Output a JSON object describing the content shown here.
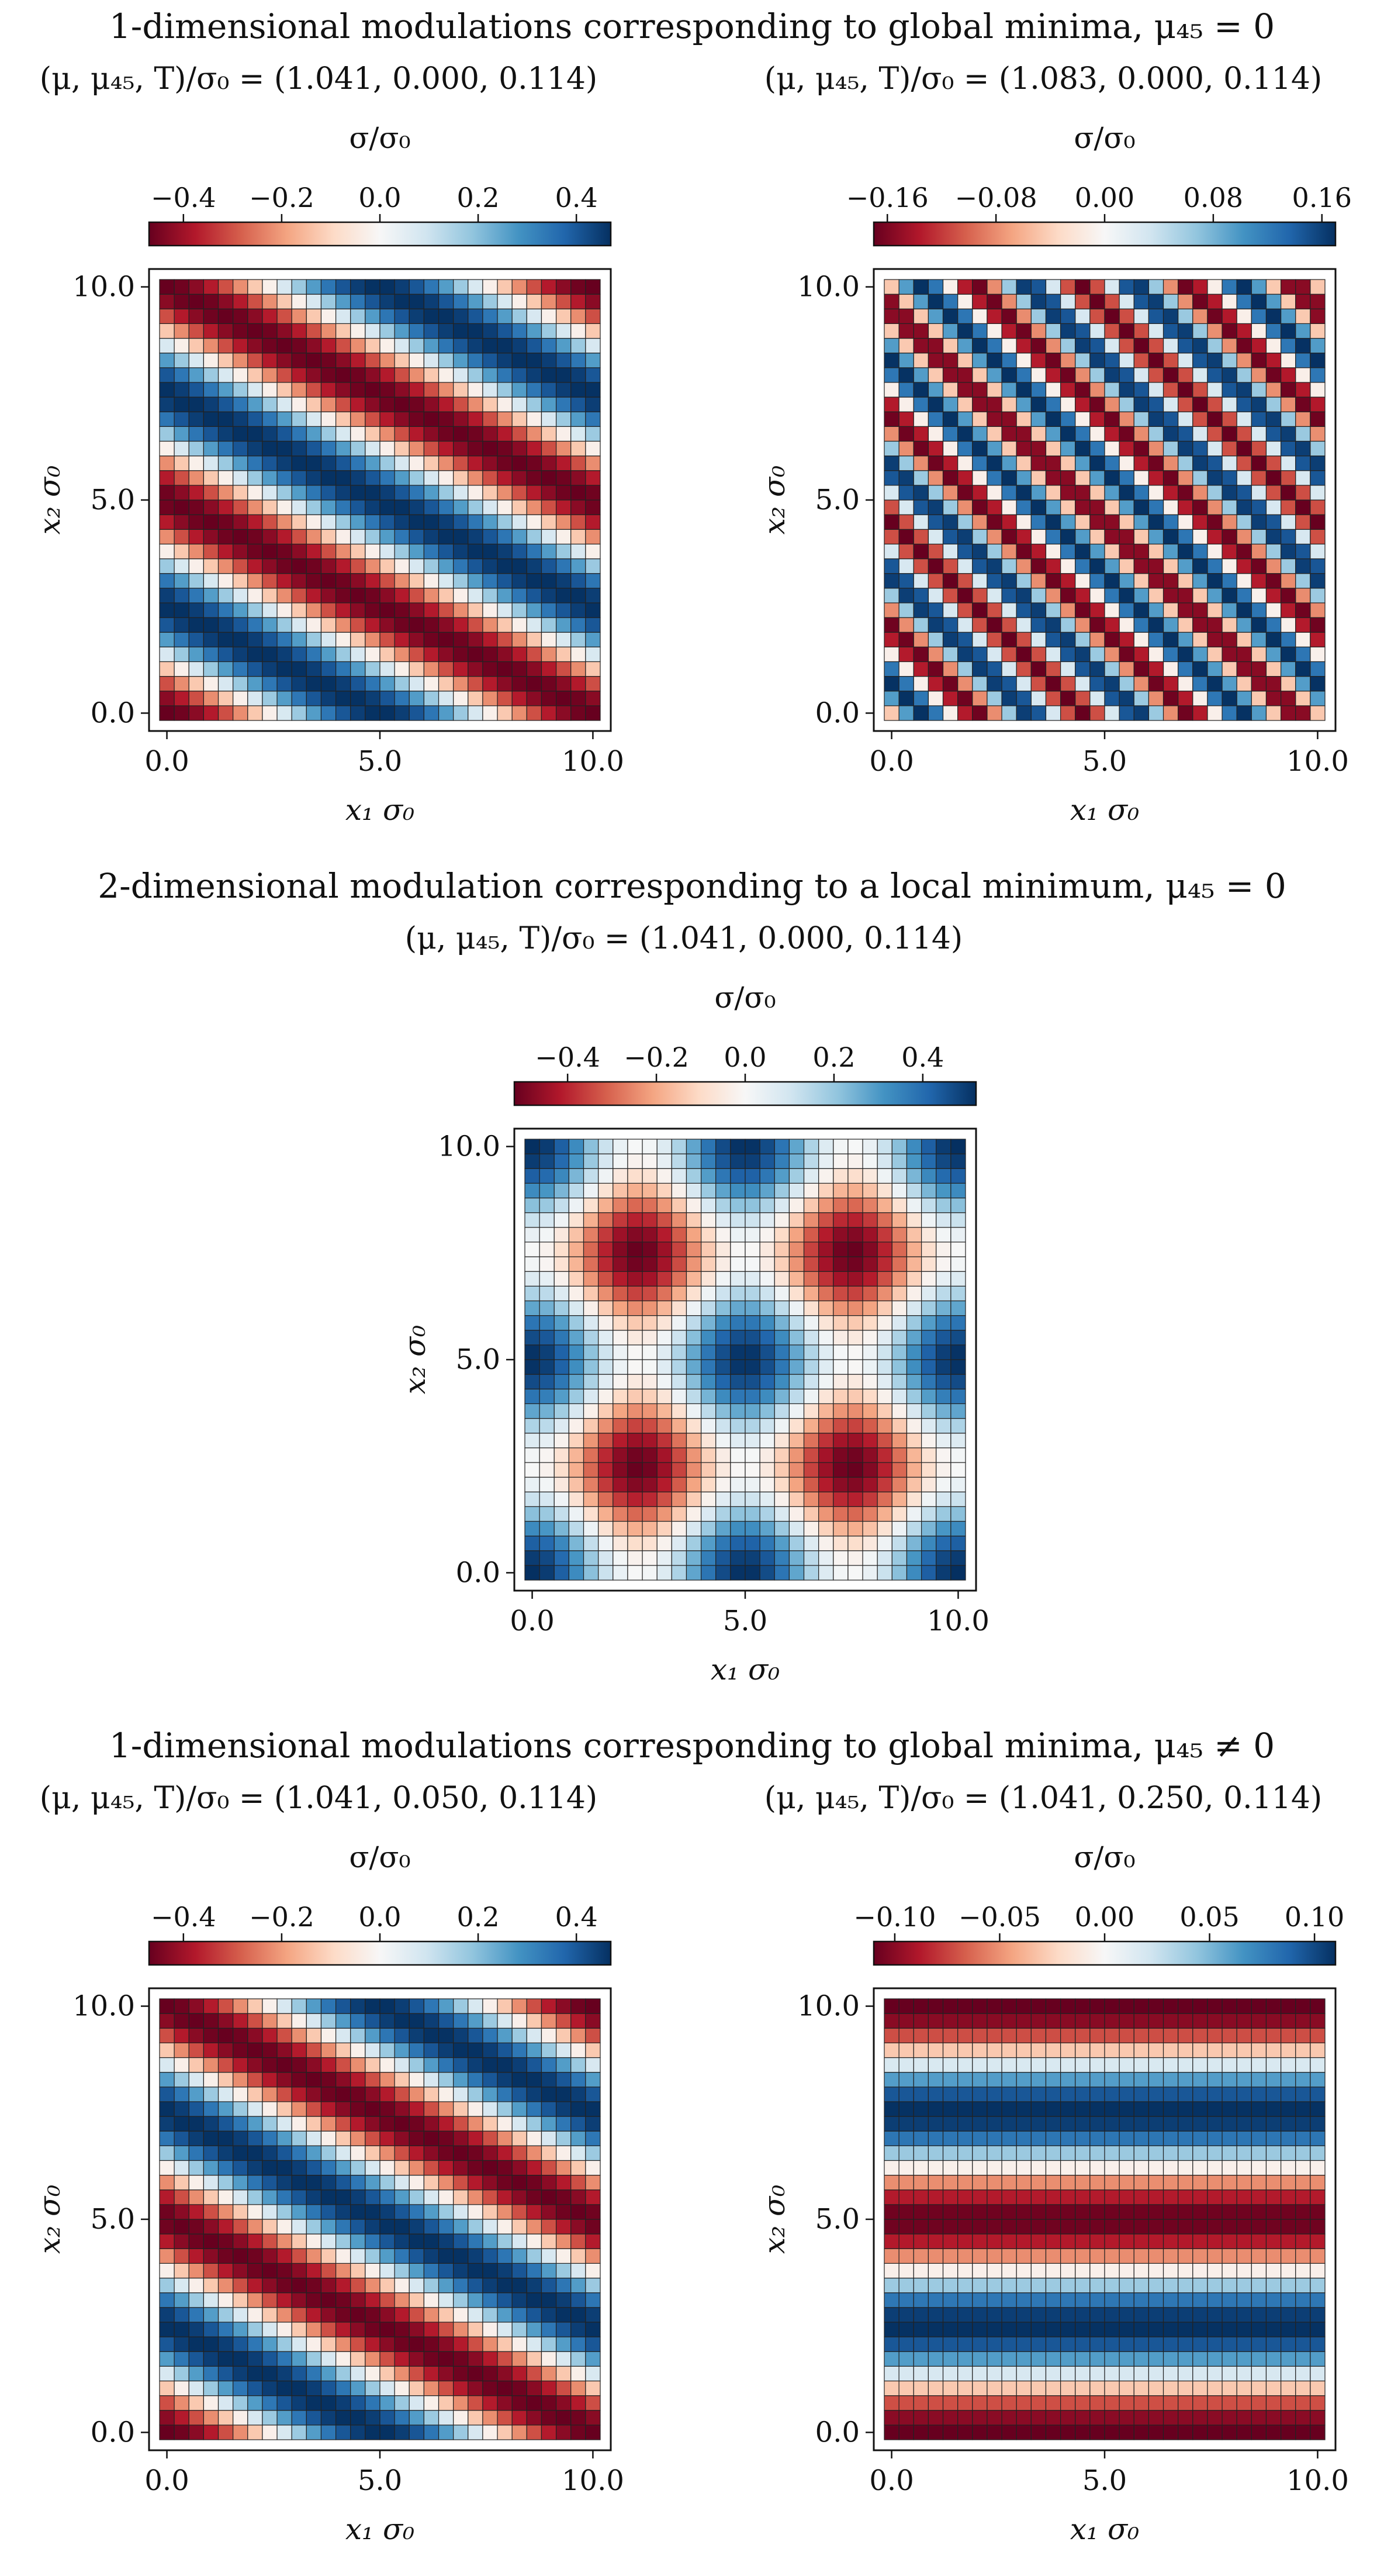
{
  "sections": [
    {
      "title": "1-dimensional modulations corresponding to global minima, μ₄₅ = 0"
    },
    {
      "title": "2-dimensional modulation corresponding to a local minimum, μ₄₅ = 0"
    },
    {
      "title": "1-dimensional modulations corresponding to global minima, μ₄₅ ≠ 0"
    }
  ],
  "chart_data": [
    {
      "type": "heatmap",
      "name": "panel-1a",
      "title": "(μ, μ₄₅, T)/σ₀ = (1.041, 0.000, 0.114)",
      "colorbar_label": "σ/σ₀",
      "colorbar_ticks": [
        -0.4,
        -0.2,
        0.0,
        0.2,
        0.4
      ],
      "colorbar_tick_labels": [
        "−0.4",
        "−0.2",
        "0.0",
        "0.2",
        "0.4"
      ],
      "vmin": -0.47,
      "vmax": 0.47,
      "xlabel": "x₁ σ₀",
      "ylabel": "x₂ σ₀",
      "xlim": [
        0,
        10
      ],
      "ylim": [
        0,
        10
      ],
      "xticks": [
        0,
        5,
        10
      ],
      "xtick_labels": [
        "0.0",
        "5.0",
        "10.0"
      ],
      "yticks": [
        0,
        5,
        10
      ],
      "ytick_labels": [
        "0.0",
        "5.0",
        "10.0"
      ],
      "grid_n": 30,
      "field": {
        "kind": "plane_wave",
        "amplitude": 0.47,
        "kx": 0.628,
        "ky": 1.257,
        "phase": 0.0
      }
    },
    {
      "type": "heatmap",
      "name": "panel-1b",
      "title": "(μ, μ₄₅, T)/σ₀ = (1.083, 0.000, 0.114)",
      "colorbar_label": "σ/σ₀",
      "colorbar_ticks": [
        -0.16,
        -0.08,
        0.0,
        0.08,
        0.16
      ],
      "colorbar_tick_labels": [
        "−0.16",
        "−0.08",
        "0.00",
        "0.08",
        "0.16"
      ],
      "vmin": -0.17,
      "vmax": 0.17,
      "xlabel": "x₁ σ₀",
      "ylabel": "x₂ σ₀",
      "xlim": [
        0,
        10
      ],
      "ylim": [
        0,
        10
      ],
      "xticks": [
        0,
        5,
        10
      ],
      "xtick_labels": [
        "0.0",
        "5.0",
        "10.0"
      ],
      "yticks": [
        0,
        5,
        10
      ],
      "ytick_labels": [
        "0.0",
        "5.0",
        "10.0"
      ],
      "grid_n": 30,
      "field": {
        "kind": "plane_wave",
        "amplitude": 0.17,
        "kx": 2.513,
        "ky": 2.513,
        "phase": 1.3
      }
    },
    {
      "type": "heatmap",
      "name": "panel-2",
      "title": "(μ, μ₄₅, T)/σ₀ = (1.041, 0.000, 0.114)",
      "colorbar_label": "σ/σ₀",
      "colorbar_ticks": [
        -0.4,
        -0.2,
        0.0,
        0.2,
        0.4
      ],
      "colorbar_tick_labels": [
        "−0.4",
        "−0.2",
        "0.0",
        "0.2",
        "0.4"
      ],
      "vmin": -0.52,
      "vmax": 0.52,
      "xlabel": "x₁ σ₀",
      "ylabel": "x₂ σ₀",
      "xlim": [
        0,
        10
      ],
      "ylim": [
        0,
        10
      ],
      "xticks": [
        0,
        5,
        10
      ],
      "xtick_labels": [
        "0.0",
        "5.0",
        "10.0"
      ],
      "yticks": [
        0,
        5,
        10
      ],
      "ytick_labels": [
        "0.0",
        "5.0",
        "10.0"
      ],
      "grid_n": 30,
      "field": {
        "kind": "cross_wave",
        "amplitude": 0.26,
        "kx": 1.257,
        "ky": 1.257
      }
    },
    {
      "type": "heatmap",
      "name": "panel-3a",
      "title": "(μ, μ₄₅, T)/σ₀ = (1.041, 0.050, 0.114)",
      "colorbar_label": "σ/σ₀",
      "colorbar_ticks": [
        -0.4,
        -0.2,
        0.0,
        0.2,
        0.4
      ],
      "colorbar_tick_labels": [
        "−0.4",
        "−0.2",
        "0.0",
        "0.2",
        "0.4"
      ],
      "vmin": -0.47,
      "vmax": 0.47,
      "xlabel": "x₁ σ₀",
      "ylabel": "x₂ σ₀",
      "xlim": [
        0,
        10
      ],
      "ylim": [
        0,
        10
      ],
      "xticks": [
        0,
        5,
        10
      ],
      "xtick_labels": [
        "0.0",
        "5.0",
        "10.0"
      ],
      "yticks": [
        0,
        5,
        10
      ],
      "ytick_labels": [
        "0.0",
        "5.0",
        "10.0"
      ],
      "grid_n": 30,
      "field": {
        "kind": "plane_wave",
        "amplitude": 0.47,
        "kx": 0.628,
        "ky": 1.257,
        "phase": 0.0
      }
    },
    {
      "type": "heatmap",
      "name": "panel-3b",
      "title": "(μ, μ₄₅, T)/σ₀ = (1.041, 0.250, 0.114)",
      "colorbar_label": "σ/σ₀",
      "colorbar_ticks": [
        -0.1,
        -0.05,
        0.0,
        0.05,
        0.1
      ],
      "colorbar_tick_labels": [
        "−0.10",
        "−0.05",
        "0.00",
        "0.05",
        "0.10"
      ],
      "vmin": -0.11,
      "vmax": 0.11,
      "xlabel": "x₁ σ₀",
      "ylabel": "x₂ σ₀",
      "xlim": [
        0,
        10
      ],
      "ylim": [
        0,
        10
      ],
      "xticks": [
        0,
        5,
        10
      ],
      "xtick_labels": [
        "0.0",
        "5.0",
        "10.0"
      ],
      "yticks": [
        0,
        5,
        10
      ],
      "ytick_labels": [
        "0.0",
        "5.0",
        "10.0"
      ],
      "grid_n": 30,
      "field": {
        "kind": "plane_wave",
        "amplitude": 0.11,
        "kx": 0.0,
        "ky": 1.257,
        "phase": 0.0
      }
    }
  ],
  "colormap": [
    "#67001f",
    "#b2182b",
    "#d6604d",
    "#f4a582",
    "#fddbc7",
    "#f7f7f7",
    "#d1e5f0",
    "#92c5de",
    "#4393c3",
    "#2166ac",
    "#053061"
  ]
}
